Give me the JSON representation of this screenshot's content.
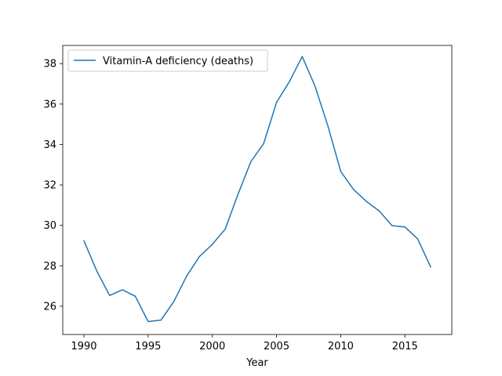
{
  "chart_data": {
    "type": "line",
    "title": "",
    "xlabel": "Year",
    "ylabel": "",
    "xlim": [
      1988.35,
      2018.65
    ],
    "ylim": [
      24.6,
      38.9
    ],
    "xticks": [
      1990,
      1995,
      2000,
      2005,
      2010,
      2015
    ],
    "yticks": [
      26,
      28,
      30,
      32,
      34,
      36,
      38
    ],
    "grid": false,
    "legend_position": "top-left",
    "series": [
      {
        "name": "Vitamin-A deficiency (deaths)",
        "color": "#1f77b4",
        "x": [
          1990,
          1991,
          1992,
          1993,
          1994,
          1995,
          1996,
          1997,
          1998,
          1999,
          2000,
          2001,
          2002,
          2003,
          2004,
          2005,
          2006,
          2007,
          2008,
          2009,
          2010,
          2011,
          2012,
          2013,
          2014,
          2015,
          2016,
          2017
        ],
        "y": [
          29.24,
          27.74,
          26.53,
          26.81,
          26.49,
          25.24,
          25.31,
          26.23,
          27.49,
          28.46,
          29.06,
          29.81,
          31.54,
          33.15,
          34.05,
          36.08,
          37.11,
          38.35,
          36.88,
          34.92,
          32.67,
          31.77,
          31.18,
          30.71,
          29.98,
          29.92,
          29.32,
          27.94
        ]
      }
    ]
  }
}
